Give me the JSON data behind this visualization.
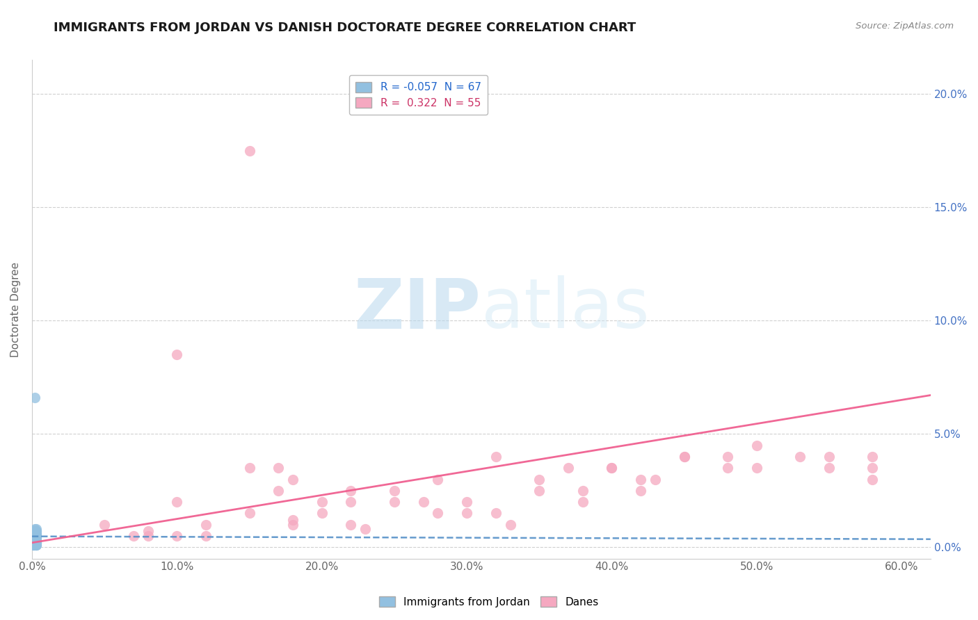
{
  "title": "IMMIGRANTS FROM JORDAN VS DANISH DOCTORATE DEGREE CORRELATION CHART",
  "source_text": "Source: ZipAtlas.com",
  "ylabel": "Doctorate Degree",
  "bottom_legend": [
    "Immigrants from Jordan",
    "Danes"
  ],
  "xlim": [
    0.0,
    0.62
  ],
  "ylim": [
    -0.005,
    0.215
  ],
  "x_ticks": [
    0.0,
    0.1,
    0.2,
    0.3,
    0.4,
    0.5,
    0.6
  ],
  "x_tick_labels": [
    "0.0%",
    "10.0%",
    "20.0%",
    "30.0%",
    "40.0%",
    "50.0%",
    "60.0%"
  ],
  "y_ticks": [
    0.0,
    0.05,
    0.1,
    0.15,
    0.2
  ],
  "y_tick_labels": [
    "0.0%",
    "5.0%",
    "10.0%",
    "15.0%",
    "20.0%"
  ],
  "watermark": "ZIPatlas",
  "background_color": "#ffffff",
  "grid_color": "#d0d0d0",
  "jordan_color": "#92c0e0",
  "danes_color": "#f5a8c0",
  "jordan_trendline_color": "#5590c8",
  "danes_trendline_color": "#f06090",
  "jordan_r": -0.057,
  "danes_r": 0.322,
  "legend_r1": "R = -0.057",
  "legend_n1": "N = 67",
  "legend_r2": "R =  0.322",
  "legend_n2": "N = 55",
  "jordan_scatter": [
    [
      0.001,
      0.001
    ],
    [
      0.002,
      0.002
    ],
    [
      0.001,
      0.003
    ],
    [
      0.003,
      0.001
    ],
    [
      0.002,
      0.004
    ],
    [
      0.001,
      0.005
    ],
    [
      0.003,
      0.002
    ],
    [
      0.002,
      0.003
    ],
    [
      0.001,
      0.002
    ],
    [
      0.003,
      0.004
    ],
    [
      0.002,
      0.001
    ],
    [
      0.001,
      0.006
    ],
    [
      0.003,
      0.003
    ],
    [
      0.002,
      0.005
    ],
    [
      0.001,
      0.004
    ],
    [
      0.003,
      0.006
    ],
    [
      0.002,
      0.002
    ],
    [
      0.001,
      0.003
    ],
    [
      0.003,
      0.005
    ],
    [
      0.002,
      0.007
    ],
    [
      0.001,
      0.001
    ],
    [
      0.003,
      0.002
    ],
    [
      0.002,
      0.004
    ],
    [
      0.001,
      0.003
    ],
    [
      0.003,
      0.007
    ],
    [
      0.002,
      0.003
    ],
    [
      0.001,
      0.005
    ],
    [
      0.003,
      0.004
    ],
    [
      0.002,
      0.006
    ],
    [
      0.001,
      0.002
    ],
    [
      0.003,
      0.003
    ],
    [
      0.002,
      0.008
    ],
    [
      0.001,
      0.004
    ],
    [
      0.003,
      0.005
    ],
    [
      0.002,
      0.002
    ],
    [
      0.001,
      0.006
    ],
    [
      0.003,
      0.001
    ],
    [
      0.002,
      0.003
    ],
    [
      0.001,
      0.007
    ],
    [
      0.003,
      0.006
    ],
    [
      0.002,
      0.004
    ],
    [
      0.001,
      0.002
    ],
    [
      0.003,
      0.008
    ],
    [
      0.002,
      0.005
    ],
    [
      0.001,
      0.003
    ],
    [
      0.003,
      0.002
    ],
    [
      0.002,
      0.006
    ],
    [
      0.001,
      0.004
    ],
    [
      0.003,
      0.001
    ],
    [
      0.002,
      0.003
    ],
    [
      0.001,
      0.005
    ],
    [
      0.003,
      0.007
    ],
    [
      0.002,
      0.002
    ],
    [
      0.001,
      0.004
    ],
    [
      0.003,
      0.003
    ],
    [
      0.002,
      0.066
    ],
    [
      0.001,
      0.001
    ],
    [
      0.003,
      0.004
    ],
    [
      0.002,
      0.005
    ],
    [
      0.001,
      0.003
    ],
    [
      0.003,
      0.006
    ],
    [
      0.002,
      0.002
    ],
    [
      0.001,
      0.007
    ],
    [
      0.003,
      0.003
    ],
    [
      0.002,
      0.004
    ],
    [
      0.001,
      0.005
    ],
    [
      0.003,
      0.002
    ]
  ],
  "danes_scatter": [
    [
      0.05,
      0.01
    ],
    [
      0.08,
      0.005
    ],
    [
      0.1,
      0.02
    ],
    [
      0.12,
      0.005
    ],
    [
      0.15,
      0.035
    ],
    [
      0.18,
      0.01
    ],
    [
      0.1,
      0.085
    ],
    [
      0.2,
      0.015
    ],
    [
      0.25,
      0.02
    ],
    [
      0.22,
      0.01
    ],
    [
      0.17,
      0.035
    ],
    [
      0.3,
      0.02
    ],
    [
      0.28,
      0.015
    ],
    [
      0.35,
      0.03
    ],
    [
      0.32,
      0.04
    ],
    [
      0.38,
      0.025
    ],
    [
      0.4,
      0.035
    ],
    [
      0.45,
      0.04
    ],
    [
      0.42,
      0.03
    ],
    [
      0.5,
      0.045
    ],
    [
      0.55,
      0.035
    ],
    [
      0.58,
      0.04
    ],
    [
      0.1,
      0.005
    ],
    [
      0.12,
      0.01
    ],
    [
      0.15,
      0.015
    ],
    [
      0.08,
      0.007
    ],
    [
      0.2,
      0.02
    ],
    [
      0.25,
      0.025
    ],
    [
      0.18,
      0.012
    ],
    [
      0.3,
      0.015
    ],
    [
      0.22,
      0.02
    ],
    [
      0.35,
      0.025
    ],
    [
      0.28,
      0.03
    ],
    [
      0.4,
      0.035
    ],
    [
      0.45,
      0.04
    ],
    [
      0.5,
      0.035
    ],
    [
      0.15,
      0.175
    ],
    [
      0.55,
      0.04
    ],
    [
      0.38,
      0.02
    ],
    [
      0.32,
      0.015
    ],
    [
      0.17,
      0.025
    ],
    [
      0.42,
      0.025
    ],
    [
      0.07,
      0.005
    ],
    [
      0.58,
      0.03
    ],
    [
      0.23,
      0.008
    ],
    [
      0.48,
      0.035
    ],
    [
      0.33,
      0.01
    ],
    [
      0.27,
      0.02
    ],
    [
      0.58,
      0.035
    ],
    [
      0.43,
      0.03
    ],
    [
      0.18,
      0.03
    ],
    [
      0.53,
      0.04
    ],
    [
      0.37,
      0.035
    ],
    [
      0.22,
      0.025
    ],
    [
      0.48,
      0.04
    ]
  ],
  "jordan_trend": [
    -0.05,
    0.0048
  ],
  "danes_trend": [
    0.065,
    0.006
  ]
}
